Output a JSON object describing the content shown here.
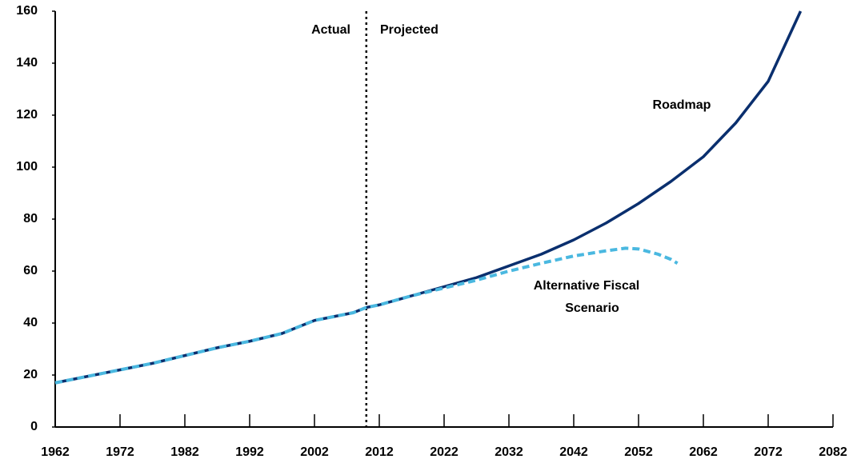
{
  "chart_data": {
    "type": "line",
    "xlim": [
      1962,
      2082
    ],
    "xticks": [
      1962,
      1972,
      1982,
      1992,
      2002,
      2012,
      2022,
      2032,
      2042,
      2052,
      2062,
      2072,
      2082
    ],
    "ylim": [
      0,
      160
    ],
    "yticks": [
      0,
      20,
      40,
      60,
      80,
      100,
      120,
      140,
      160
    ],
    "divider_x": 2010,
    "annotations": [
      "Actual",
      "Projected",
      "Roadmap",
      "Alternative Fiscal",
      "Scenario"
    ],
    "series": [
      {
        "name": "Roadmap",
        "color": "#0a2f6e",
        "dashed": false,
        "x": [
          1962,
          1967,
          1972,
          1977,
          1982,
          1987,
          1992,
          1997,
          2002,
          2005,
          2008,
          2010,
          2012,
          2017,
          2022,
          2027,
          2032,
          2037,
          2042,
          2047,
          2052,
          2057,
          2062,
          2067,
          2072,
          2077
        ],
        "values": [
          17,
          19.5,
          22,
          24.5,
          27.5,
          30.5,
          33,
          36,
          41,
          42.5,
          44,
          46,
          47,
          50.5,
          54,
          57.5,
          62,
          66.5,
          72,
          78.5,
          86,
          94.5,
          104,
          117,
          133,
          160
        ]
      },
      {
        "name": "Alternative Fiscal Scenario",
        "color": "#4ab8e0",
        "dashed": true,
        "x": [
          1962,
          1967,
          1972,
          1977,
          1982,
          1987,
          1992,
          1997,
          2002,
          2005,
          2008,
          2010,
          2012,
          2017,
          2022,
          2027,
          2032,
          2037,
          2042,
          2047,
          2050,
          2052,
          2055,
          2057,
          2058
        ],
        "values": [
          17,
          19.5,
          22,
          24.5,
          27.5,
          30.5,
          33,
          36,
          41,
          42.5,
          44,
          46,
          47,
          50.5,
          53.5,
          56.5,
          60,
          63,
          65.8,
          67.8,
          68.8,
          68.5,
          66.5,
          64.5,
          63
        ]
      }
    ]
  }
}
